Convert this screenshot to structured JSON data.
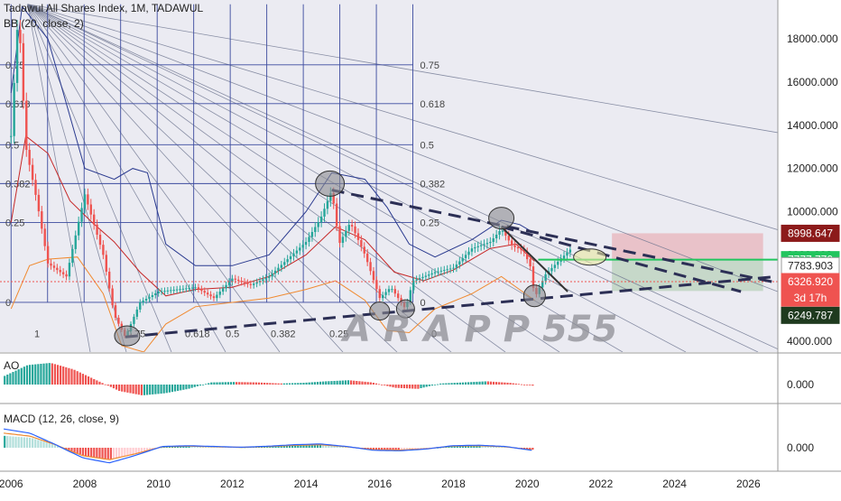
{
  "header": {
    "symbol_line": "Tadawul All Shares Index, 1M, TADAWUL",
    "bb_indicator": "BB (20, close, 2)",
    "ao_indicator": "AO",
    "macd_indicator": "MACD (12, 26, close, 9)"
  },
  "watermark": "A R A P P 555",
  "chart_data": [
    {
      "type": "line",
      "name": "main-price-panel",
      "x_axis": {
        "min": 2005.7,
        "max": 2026.8,
        "tick_labels": [
          "2006",
          "2008",
          "2010",
          "2012",
          "2014",
          "2016",
          "2018",
          "2020",
          "2022",
          "2024",
          "2026"
        ]
      },
      "y_axis": {
        "min": 3500,
        "max": 19800,
        "tick_labels": [
          "18000.000",
          "16000.000",
          "14000.000",
          "12000.000",
          "10000.000",
          "8000.000",
          "6000.000",
          "4000.000"
        ]
      },
      "price_close": [
        {
          "x": 2006.0,
          "y": 13500
        },
        {
          "x": 2006.2,
          "y": 19400
        },
        {
          "x": 2006.4,
          "y": 13000
        },
        {
          "x": 2006.7,
          "y": 10500
        },
        {
          "x": 2007.0,
          "y": 7600
        },
        {
          "x": 2007.5,
          "y": 7000
        },
        {
          "x": 2008.0,
          "y": 10800
        },
        {
          "x": 2008.5,
          "y": 8000
        },
        {
          "x": 2008.8,
          "y": 5200
        },
        {
          "x": 2009.1,
          "y": 4200
        },
        {
          "x": 2009.5,
          "y": 5800
        },
        {
          "x": 2010.0,
          "y": 6300
        },
        {
          "x": 2011.0,
          "y": 6500
        },
        {
          "x": 2011.5,
          "y": 6000
        },
        {
          "x": 2012.0,
          "y": 6900
        },
        {
          "x": 2012.5,
          "y": 6600
        },
        {
          "x": 2013.0,
          "y": 7000
        },
        {
          "x": 2013.5,
          "y": 7800
        },
        {
          "x": 2014.0,
          "y": 8600
        },
        {
          "x": 2014.4,
          "y": 9700
        },
        {
          "x": 2014.7,
          "y": 11000
        },
        {
          "x": 2014.9,
          "y": 8500
        },
        {
          "x": 2015.2,
          "y": 9500
        },
        {
          "x": 2015.6,
          "y": 8000
        },
        {
          "x": 2016.0,
          "y": 6000
        },
        {
          "x": 2016.3,
          "y": 6500
        },
        {
          "x": 2016.7,
          "y": 5500
        },
        {
          "x": 2016.9,
          "y": 6800
        },
        {
          "x": 2017.5,
          "y": 7200
        },
        {
          "x": 2018.0,
          "y": 7400
        },
        {
          "x": 2018.5,
          "y": 8300
        },
        {
          "x": 2019.0,
          "y": 8600
        },
        {
          "x": 2019.3,
          "y": 9200
        },
        {
          "x": 2019.6,
          "y": 8400
        },
        {
          "x": 2019.9,
          "y": 8200
        },
        {
          "x": 2020.1,
          "y": 7400
        },
        {
          "x": 2020.2,
          "y": 6000
        },
        {
          "x": 2020.5,
          "y": 7100
        },
        {
          "x": 2020.9,
          "y": 7800
        },
        {
          "x": 2021.2,
          "y": 8300
        }
      ],
      "bb_basis": [
        {
          "x": 2006.0,
          "y": 9500
        },
        {
          "x": 2006.4,
          "y": 13500
        },
        {
          "x": 2007.0,
          "y": 12700
        },
        {
          "x": 2007.6,
          "y": 10500
        },
        {
          "x": 2008.2,
          "y": 9500
        },
        {
          "x": 2008.8,
          "y": 8600
        },
        {
          "x": 2009.5,
          "y": 7200
        },
        {
          "x": 2010.2,
          "y": 6100
        },
        {
          "x": 2011.0,
          "y": 6400
        },
        {
          "x": 2012.0,
          "y": 6500
        },
        {
          "x": 2013.0,
          "y": 7000
        },
        {
          "x": 2014.0,
          "y": 8000
        },
        {
          "x": 2014.8,
          "y": 9300
        },
        {
          "x": 2015.6,
          "y": 8700
        },
        {
          "x": 2016.4,
          "y": 7200
        },
        {
          "x": 2017.2,
          "y": 6800
        },
        {
          "x": 2018.0,
          "y": 7300
        },
        {
          "x": 2019.0,
          "y": 8300
        },
        {
          "x": 2019.7,
          "y": 8500
        },
        {
          "x": 2020.2,
          "y": 7700
        }
      ],
      "bb_upper": [
        {
          "x": 2006.0,
          "y": 15500
        },
        {
          "x": 2006.3,
          "y": 19500
        },
        {
          "x": 2007.0,
          "y": 18000
        },
        {
          "x": 2008.0,
          "y": 12000
        },
        {
          "x": 2008.8,
          "y": 11500
        },
        {
          "x": 2009.3,
          "y": 12000
        },
        {
          "x": 2009.7,
          "y": 11800
        },
        {
          "x": 2010.2,
          "y": 8500
        },
        {
          "x": 2011.0,
          "y": 7500
        },
        {
          "x": 2012.0,
          "y": 7500
        },
        {
          "x": 2013.0,
          "y": 8000
        },
        {
          "x": 2014.0,
          "y": 10000
        },
        {
          "x": 2014.7,
          "y": 11800
        },
        {
          "x": 2015.6,
          "y": 11500
        },
        {
          "x": 2016.2,
          "y": 10200
        },
        {
          "x": 2016.8,
          "y": 8500
        },
        {
          "x": 2017.5,
          "y": 7900
        },
        {
          "x": 2018.5,
          "y": 8700
        },
        {
          "x": 2019.3,
          "y": 9600
        },
        {
          "x": 2019.8,
          "y": 9400
        },
        {
          "x": 2020.2,
          "y": 9000
        }
      ],
      "bb_lower": [
        {
          "x": 2006.0,
          "y": 5500
        },
        {
          "x": 2006.5,
          "y": 7500
        },
        {
          "x": 2007.0,
          "y": 7800
        },
        {
          "x": 2007.8,
          "y": 7900
        },
        {
          "x": 2008.5,
          "y": 6200
        },
        {
          "x": 2009.0,
          "y": 3800
        },
        {
          "x": 2009.6,
          "y": 3500
        },
        {
          "x": 2010.2,
          "y": 4800
        },
        {
          "x": 2011.0,
          "y": 5600
        },
        {
          "x": 2012.0,
          "y": 5800
        },
        {
          "x": 2013.0,
          "y": 6000
        },
        {
          "x": 2014.0,
          "y": 6400
        },
        {
          "x": 2014.8,
          "y": 6800
        },
        {
          "x": 2015.6,
          "y": 5900
        },
        {
          "x": 2016.2,
          "y": 4500
        },
        {
          "x": 2016.8,
          "y": 4400
        },
        {
          "x": 2017.5,
          "y": 5500
        },
        {
          "x": 2018.5,
          "y": 6200
        },
        {
          "x": 2019.3,
          "y": 7000
        },
        {
          "x": 2020.2,
          "y": 5900
        }
      ],
      "trendlines": [
        {
          "name": "lower-channel",
          "from": {
            "x": 2009.1,
            "y": 4200
          },
          "to": {
            "x": 2026.8,
            "y": 7000
          }
        },
        {
          "name": "upper-channel",
          "from": {
            "x": 2014.7,
            "y": 11000
          },
          "to": {
            "x": 2026.8,
            "y": 6700
          }
        },
        {
          "name": "secondary-channel",
          "from": {
            "x": 2019.3,
            "y": 9300
          },
          "to": {
            "x": 2025.8,
            "y": 6300
          }
        }
      ],
      "fib_levels": [
        {
          "label": "0.75",
          "y": 16800
        },
        {
          "label": "0.618",
          "y": 15000
        },
        {
          "label": "0.5",
          "y": 13100
        },
        {
          "label": "0.382",
          "y": 11300
        },
        {
          "label": "0.25",
          "y": 9500
        },
        {
          "label": "0",
          "y": 5800
        }
      ],
      "fib_bottom_labels": [
        "1",
        "0.75",
        "0.618",
        "0.5",
        "0.382",
        "0.25",
        "0"
      ],
      "target_box": {
        "x0": 2022.3,
        "x1": 2026.4,
        "y_top": 8998.647,
        "y_mid": 7777.77,
        "y_bottom": 6326.92
      },
      "price_labels": [
        {
          "text": "8998.647",
          "y": 8998.647,
          "bg": "#8c1a1a"
        },
        {
          "text": "7777.770",
          "y": 7777.77,
          "bg": "#22c55e"
        },
        {
          "text": "7783.903",
          "y": 7500,
          "bg": "#ffffff",
          "fg": "#222222"
        },
        {
          "text": "6326.920",
          "y": 6760,
          "bg": "#ef5350"
        },
        {
          "text": "3d 17h",
          "y": 6000,
          "bg": "#ef5350"
        },
        {
          "text": "6249.787",
          "y": 5200,
          "bg": "#1e3a1e"
        }
      ]
    },
    {
      "type": "bar",
      "name": "ao-panel",
      "y_tick_label": "0.000",
      "values": [
        0.4,
        0.9,
        1.0,
        0.7,
        0.2,
        -0.3,
        -0.5,
        -0.4,
        -0.2,
        0.1,
        0.12,
        0.1,
        0.05,
        0.08,
        0.15,
        0.2,
        0.1,
        -0.15,
        -0.2,
        0.05,
        0.1,
        0.15,
        0.08,
        -0.05
      ]
    },
    {
      "type": "line",
      "name": "macd-panel",
      "y_tick_label": "0.000",
      "histogram": [
        0.6,
        0.5,
        0.1,
        -0.4,
        -0.6,
        -0.3,
        0.05,
        0.08,
        0.05,
        0.02,
        0.06,
        0.12,
        0.15,
        0.05,
        -0.1,
        -0.12,
        -0.05,
        0.08,
        0.1,
        0.05,
        -0.1
      ]
    }
  ]
}
